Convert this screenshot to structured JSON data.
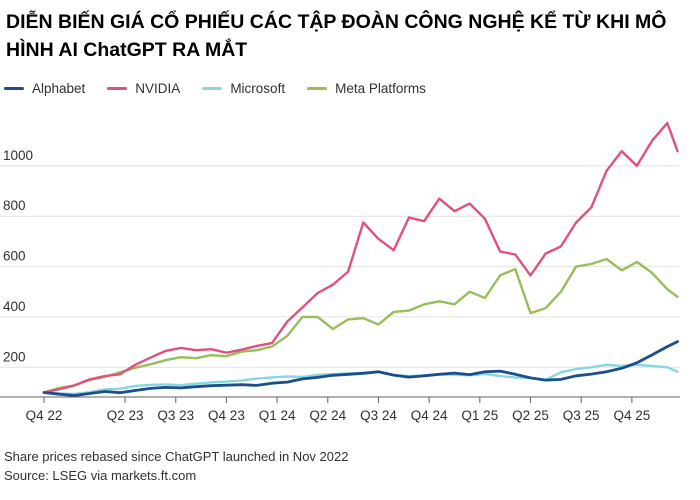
{
  "title": "DIỄN BIẾN GIÁ CỔ PHIẾU CÁC TẬP ĐOÀN CÔNG NGHỆ KỂ TỪ KHI MÔ HÌNH AI ChatGPT RA MẮT",
  "footer": {
    "note": "Share prices rebased since ChatGPT launched in Nov 2022",
    "source": "Source: LSEG via markets.ft.com"
  },
  "colors": {
    "alphabet": "#1b4f8c",
    "nvidia": "#e0517f",
    "microsoft": "#87d7e0",
    "meta": "#96bf5a",
    "gridline": "#e6e2dc",
    "axis": "#66605c"
  },
  "chart_data": {
    "type": "line",
    "title": "DIỄN BIẾN GIÁ CỔ PHIẾU CÁC TẬP ĐOÀN CÔNG NGHỆ KỂ TỪ KHI MÔ HÌNH AI ChatGPT RA MẮT",
    "xlabel": "",
    "ylabel": "",
    "xlim": [
      0,
      12.55
    ],
    "ylim": [
      82,
      1190
    ],
    "yticks": [
      200,
      400,
      600,
      800,
      1000
    ],
    "categories": [
      "Q4 22",
      "Q2 23",
      "Q3 23",
      "Q4 23",
      "Q1 24",
      "Q2 24",
      "Q3 24",
      "Q4 24",
      "Q1 25",
      "Q2 25",
      "Q3 25",
      "Q4 25"
    ],
    "category_positions": [
      0,
      1.6,
      2.6,
      3.6,
      4.6,
      5.6,
      6.6,
      7.6,
      8.6,
      9.6,
      10.6,
      11.6
    ],
    "grid": "horizontal",
    "legend_position": "top-left",
    "series": [
      {
        "name": "Alphabet",
        "color_key": "alphabet",
        "x": [
          0,
          0.3,
          0.6,
          0.9,
          1.2,
          1.5,
          1.8,
          2.1,
          2.4,
          2.7,
          3.0,
          3.3,
          3.6,
          3.9,
          4.2,
          4.5,
          4.8,
          5.1,
          5.4,
          5.7,
          6.0,
          6.3,
          6.6,
          6.9,
          7.2,
          7.5,
          7.8,
          8.1,
          8.4,
          8.7,
          9.0,
          9.3,
          9.6,
          9.9,
          10.2,
          10.5,
          10.8,
          11.1,
          11.4,
          11.7,
          12.0,
          12.3,
          12.5
        ],
        "values": [
          100,
          93,
          88,
          96,
          104,
          99,
          108,
          116,
          120,
          118,
          123,
          127,
          129,
          131,
          128,
          137,
          141,
          154,
          160,
          168,
          172,
          176,
          182,
          169,
          161,
          166,
          172,
          177,
          171,
          182,
          185,
          172,
          158,
          149,
          152,
          166,
          173,
          182,
          196,
          218,
          249,
          282,
          302
        ]
      },
      {
        "name": "NVIDIA",
        "color_key": "nvidia",
        "x": [
          0,
          0.3,
          0.6,
          0.9,
          1.2,
          1.5,
          1.8,
          2.1,
          2.4,
          2.7,
          3.0,
          3.3,
          3.6,
          3.9,
          4.2,
          4.5,
          4.8,
          5.1,
          5.4,
          5.7,
          6.0,
          6.3,
          6.6,
          6.9,
          7.2,
          7.5,
          7.8,
          8.1,
          8.4,
          8.7,
          9.0,
          9.3,
          9.6,
          9.9,
          10.2,
          10.5,
          10.8,
          11.1,
          11.4,
          11.7,
          12.0,
          12.3,
          12.5
        ],
        "values": [
          100,
          113,
          128,
          152,
          165,
          172,
          210,
          238,
          265,
          277,
          268,
          272,
          258,
          270,
          285,
          296,
          382,
          438,
          495,
          528,
          580,
          775,
          710,
          665,
          795,
          780,
          870,
          820,
          850,
          790,
          660,
          648,
          565,
          652,
          680,
          775,
          835,
          980,
          1058,
          1000,
          1100,
          1170,
          1058
        ]
      },
      {
        "name": "Microsoft",
        "color_key": "microsoft",
        "x": [
          0,
          0.3,
          0.6,
          0.9,
          1.2,
          1.5,
          1.8,
          2.1,
          2.4,
          2.7,
          3.0,
          3.3,
          3.6,
          3.9,
          4.2,
          4.5,
          4.8,
          5.1,
          5.4,
          5.7,
          6.0,
          6.3,
          6.6,
          6.9,
          7.2,
          7.5,
          7.8,
          8.1,
          8.4,
          8.7,
          9.0,
          9.3,
          9.6,
          9.9,
          10.2,
          10.5,
          10.8,
          11.1,
          11.4,
          11.7,
          12.0,
          12.3,
          12.5
        ],
        "values": [
          100,
          96,
          94,
          101,
          112,
          115,
          126,
          130,
          132,
          129,
          135,
          140,
          143,
          148,
          155,
          160,
          164,
          162,
          170,
          173,
          175,
          178,
          182,
          168,
          165,
          167,
          172,
          170,
          168,
          173,
          165,
          160,
          158,
          150,
          180,
          193,
          200,
          210,
          205,
          210,
          205,
          200,
          182
        ]
      },
      {
        "name": "Meta Platforms",
        "color_key": "meta",
        "x": [
          0,
          0.3,
          0.6,
          0.9,
          1.2,
          1.5,
          1.8,
          2.1,
          2.4,
          2.7,
          3.0,
          3.3,
          3.6,
          3.9,
          4.2,
          4.5,
          4.8,
          5.1,
          5.4,
          5.7,
          6.0,
          6.3,
          6.6,
          6.9,
          7.2,
          7.5,
          7.8,
          8.1,
          8.4,
          8.7,
          9.0,
          9.3,
          9.6,
          9.9,
          10.2,
          10.5,
          10.8,
          11.1,
          11.4,
          11.7,
          12.0,
          12.3,
          12.5
        ],
        "values": [
          100,
          118,
          128,
          150,
          162,
          180,
          198,
          212,
          228,
          240,
          236,
          248,
          244,
          262,
          268,
          282,
          325,
          400,
          400,
          352,
          390,
          395,
          370,
          420,
          425,
          450,
          462,
          450,
          500,
          475,
          565,
          590,
          415,
          435,
          500,
          600,
          610,
          630,
          585,
          618,
          575,
          510,
          480
        ]
      }
    ]
  }
}
